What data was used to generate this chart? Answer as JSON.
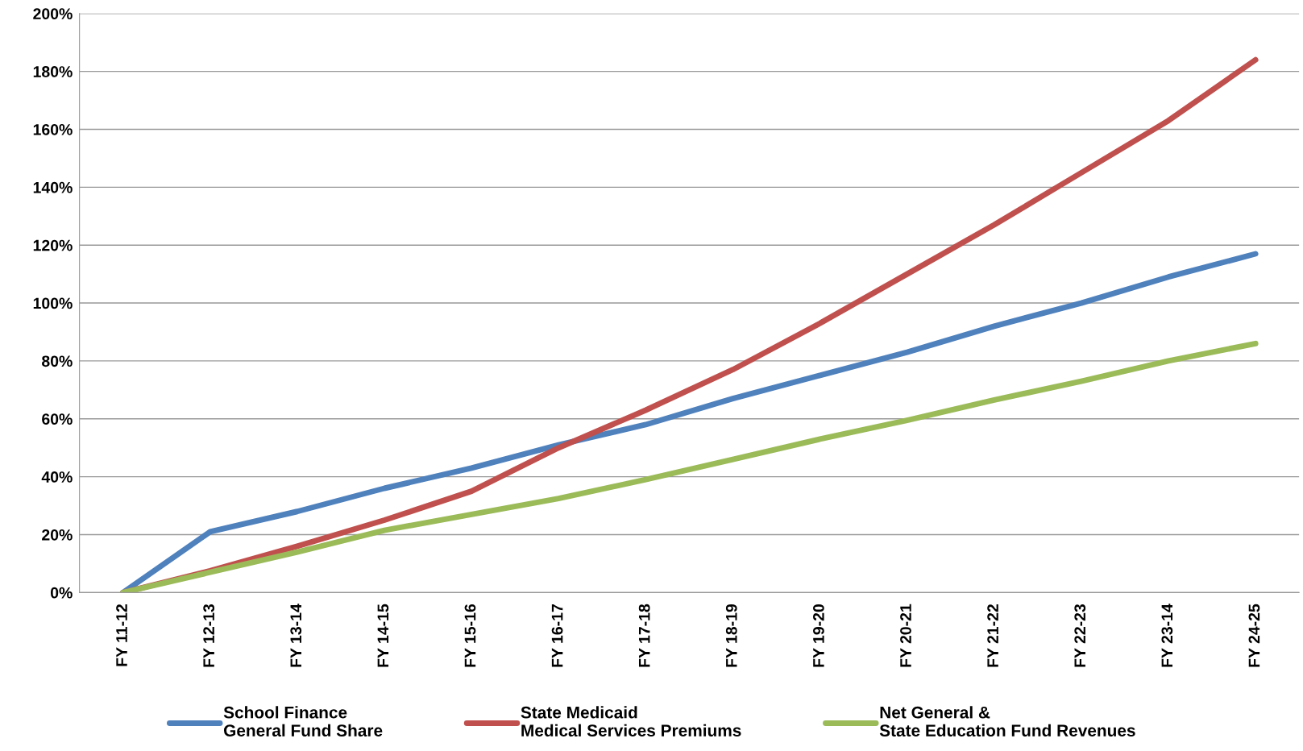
{
  "chart_data": {
    "type": "line",
    "categories": [
      "FY 11-12",
      "FY 12-13",
      "FY 13-14",
      "FY 14-15",
      "FY 15-16",
      "FY 16-17",
      "FY 17-18",
      "FY 18-19",
      "FY 19-20",
      "FY 20-21",
      "FY 21-22",
      "FY 22-23",
      "FY 23-14",
      "FY 24-25"
    ],
    "series": [
      {
        "name": "School Finance\nGeneral Fund Share",
        "color": "#4f81bd",
        "values": [
          0,
          21,
          28,
          36,
          43,
          51,
          58,
          67,
          75,
          83,
          92,
          100,
          109,
          117
        ]
      },
      {
        "name": "State Medicaid\nMedical Services Premiums",
        "color": "#c0504d",
        "values": [
          0,
          7.5,
          16,
          25,
          35,
          50,
          63,
          77,
          93,
          110,
          127,
          145,
          163,
          184
        ]
      },
      {
        "name": "Net General &\nState Education Fund Revenues",
        "color": "#9bbb59",
        "values": [
          0,
          7,
          14,
          21.5,
          27,
          32.5,
          39,
          46,
          53,
          59.5,
          66.5,
          73,
          80,
          86
        ]
      }
    ],
    "ylim": [
      0,
      200
    ],
    "yticks": [
      {
        "value": 0,
        "label": "0%"
      },
      {
        "value": 20,
        "label": "20%"
      },
      {
        "value": 40,
        "label": "40%"
      },
      {
        "value": 60,
        "label": "60%"
      },
      {
        "value": 80,
        "label": "80%"
      },
      {
        "value": 100,
        "label": "100%"
      },
      {
        "value": 120,
        "label": "120%"
      },
      {
        "value": 140,
        "label": "140%"
      },
      {
        "value": 160,
        "label": "160%"
      },
      {
        "value": 180,
        "label": "180%"
      },
      {
        "value": 200,
        "label": "200%"
      }
    ],
    "grid": "y",
    "legend": "bottom",
    "marker": "none",
    "line_style": "solid"
  }
}
